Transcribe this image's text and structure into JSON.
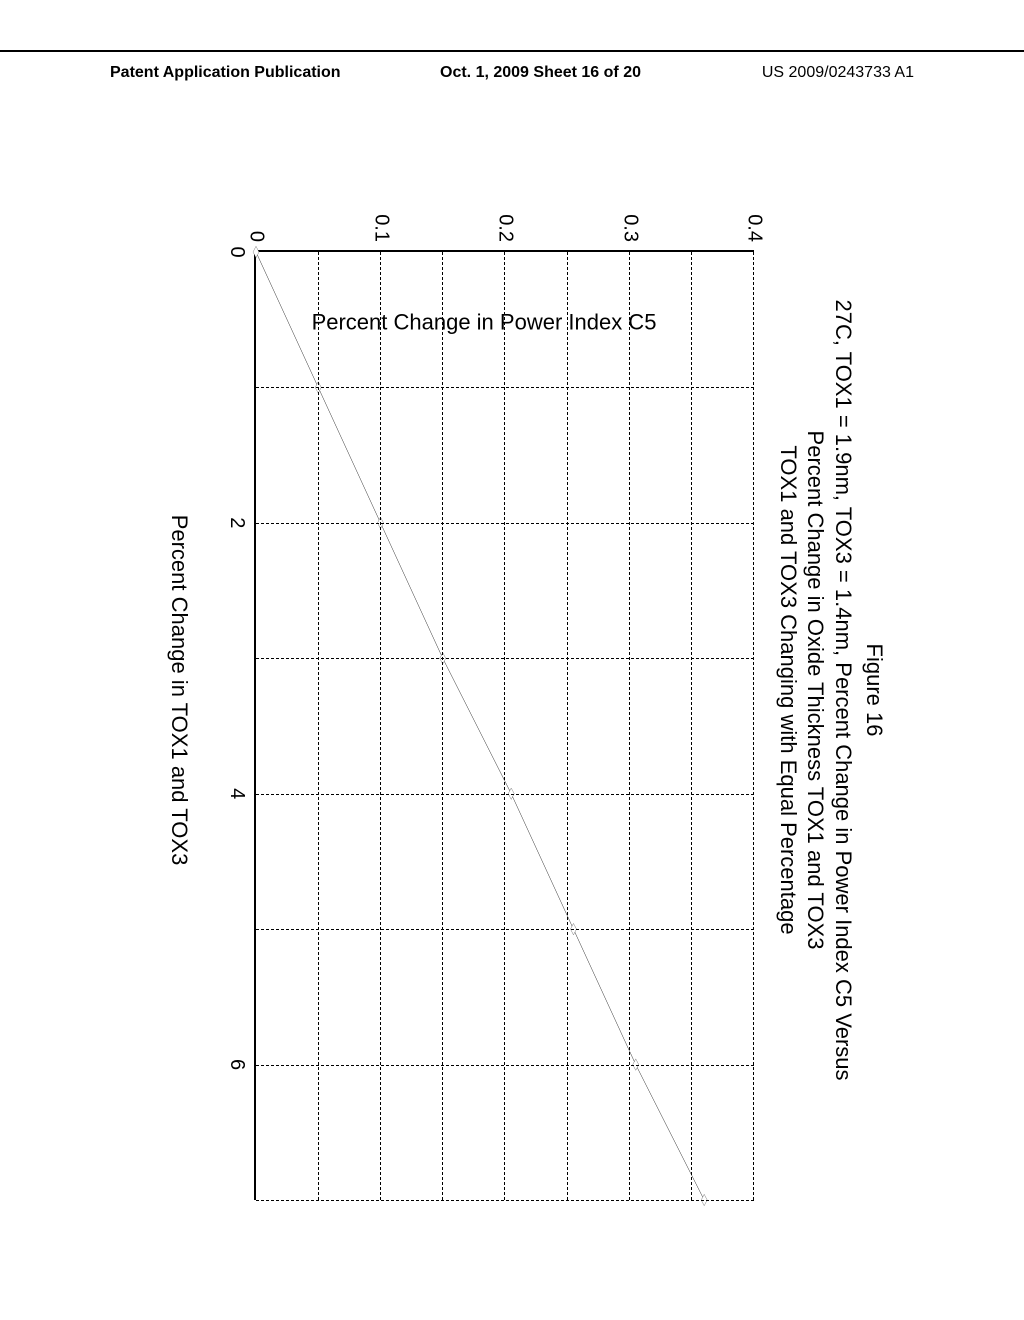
{
  "header": {
    "left": "Patent Application Publication",
    "center": "Oct. 1, 2009  Sheet 16 of 20",
    "right": "US 2009/0243733 A1"
  },
  "figure": {
    "label": "Figure 16",
    "title_line1": "27C, TOX1 = 1.9nm, TOX3 = 1.4nm,  Percent Change in Power Index C5 Versus",
    "title_line2": "Percent Change in Oxide Thickness TOX1 and TOX3",
    "title_line3": "TOX1 and TOX3 Changing with Equal Percentage",
    "ylabel": "Percent Change in Power Index C5",
    "xlabel": "Percent Change in TOX1 and TOX3"
  },
  "chart": {
    "type": "line",
    "xlim": [
      0,
      7
    ],
    "ylim": [
      0,
      0.4
    ],
    "xticks": [
      0,
      2,
      4,
      6
    ],
    "yticks": [
      0,
      0.1,
      0.2,
      0.3,
      0.4
    ],
    "xgrid": [
      1,
      2,
      3,
      4,
      5,
      6,
      7
    ],
    "ygrid": [
      0.05,
      0.1,
      0.15,
      0.2,
      0.25,
      0.3,
      0.35,
      0.4
    ],
    "points_x": [
      0,
      1,
      2,
      3,
      4,
      5,
      6,
      7
    ],
    "points_y": [
      0,
      0.05,
      0.1,
      0.15,
      0.205,
      0.255,
      0.305,
      0.36
    ],
    "line_color": "#000000",
    "line_width": 2,
    "marker_size": 5,
    "marker_shape": "diamond",
    "grid_dash": "6,6",
    "background_color": "#ffffff",
    "title_fontsize": 22,
    "label_fontsize": 22,
    "tick_fontsize": 20
  }
}
